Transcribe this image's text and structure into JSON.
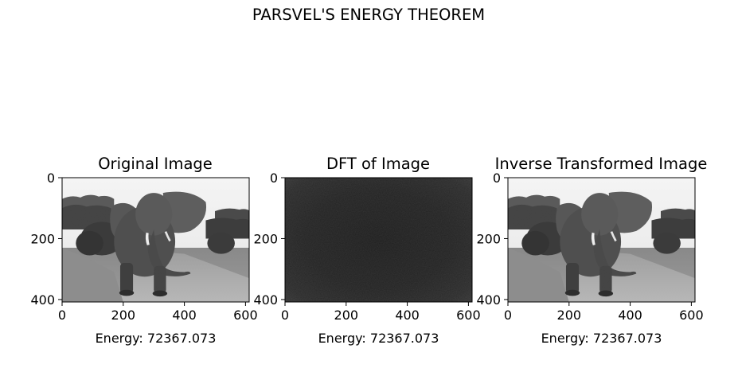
{
  "figure": {
    "suptitle": "PARSVEL'S ENERGY THEOREM"
  },
  "chart_data": [
    {
      "type": "heatmap",
      "title": "Original Image",
      "xlabel": "Energy: 72367.073",
      "ylabel": "",
      "xlim": [
        0,
        612
      ],
      "ylim": [
        408,
        0
      ],
      "xticks": [
        0,
        200,
        400,
        600
      ],
      "yticks": [
        0,
        200,
        400
      ],
      "grid": false,
      "content": "grayscale photo of an elephant walking on a dirt road"
    },
    {
      "type": "heatmap",
      "title": "DFT of Image",
      "xlabel": "Energy: 72367.073",
      "ylabel": "",
      "xlim": [
        0,
        612
      ],
      "ylim": [
        408,
        0
      ],
      "xticks": [
        0,
        200,
        400,
        600
      ],
      "yticks": [
        0,
        200,
        400
      ],
      "grid": false,
      "content": "dark grayscale magnitude spectrum, brighter toward corners"
    },
    {
      "type": "heatmap",
      "title": "Inverse Transformed Image",
      "xlabel": "Energy: 72367.073",
      "ylabel": "",
      "xlim": [
        0,
        612
      ],
      "ylim": [
        408,
        0
      ],
      "xticks": [
        0,
        200,
        400,
        600
      ],
      "yticks": [
        0,
        200,
        400
      ],
      "grid": false,
      "content": "grayscale photo of an elephant walking on a dirt road"
    }
  ]
}
